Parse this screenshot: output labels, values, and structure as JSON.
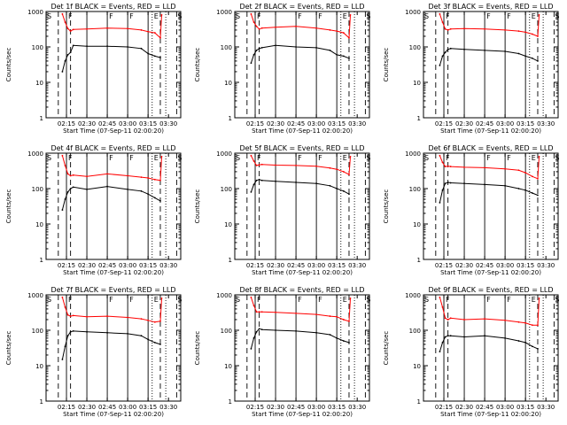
{
  "figure": {
    "xlabel": "Start Time (07-Sep-11 02:00:20)",
    "ylabel": "Counts/sec"
  },
  "colors": {
    "events": "#000000",
    "lld": "#ff0000",
    "axes": "#000000"
  },
  "chart_data": [
    {
      "type": "line",
      "title": "Det 1f BLACK = Events, RED = LLD",
      "y_scale": "log",
      "ylim": [
        1,
        1000
      ],
      "yticks": [
        "1",
        "10",
        "100",
        "1000"
      ],
      "xticks": [
        "02:15",
        "02:30",
        "02:45",
        "03:00",
        "03:15",
        "03:30"
      ],
      "xlim_minutes": [
        0,
        99
      ],
      "marker_letters": [
        "S",
        "F",
        "F",
        "F",
        "E",
        "S"
      ],
      "solid_markers_minutes": [
        15,
        30,
        45,
        60,
        75
      ],
      "dashed_markers_minutes": [
        9,
        18,
        84,
        96
      ],
      "dotted_markers_minutes": [
        78,
        88
      ],
      "series": [
        {
          "color": "#ff0000",
          "minutes": [
            12,
            14,
            16,
            18,
            20,
            30,
            45,
            60,
            70,
            75,
            80,
            84,
            85
          ],
          "values": [
            850,
            500,
            330,
            280,
            310,
            320,
            340,
            330,
            300,
            270,
            250,
            180,
            800
          ]
        },
        {
          "color": "#000000",
          "minutes": [
            12,
            14,
            16,
            18,
            20,
            30,
            45,
            60,
            70,
            75,
            80,
            84
          ],
          "values": [
            20,
            40,
            60,
            70,
            110,
            105,
            105,
            100,
            90,
            65,
            55,
            50
          ]
        }
      ]
    },
    {
      "type": "line",
      "title": "Det 2f BLACK = Events, RED = LLD",
      "y_scale": "log",
      "ylim": [
        1,
        1000
      ],
      "yticks": [
        "1",
        "10",
        "100",
        "1000"
      ],
      "xticks": [
        "02:15",
        "02:30",
        "02:45",
        "03:00",
        "03:15",
        "03:30"
      ],
      "xlim_minutes": [
        0,
        99
      ],
      "marker_letters": [
        "S",
        "F",
        "F",
        "F",
        "E",
        "S"
      ],
      "solid_markers_minutes": [
        15,
        30,
        45,
        60,
        75
      ],
      "dashed_markers_minutes": [
        9,
        18,
        84,
        96
      ],
      "dotted_markers_minutes": [
        78,
        88
      ],
      "series": [
        {
          "color": "#ff0000",
          "minutes": [
            12,
            14,
            16,
            18,
            20,
            30,
            45,
            60,
            70,
            75,
            80,
            84,
            85
          ],
          "values": [
            850,
            500,
            380,
            320,
            340,
            360,
            380,
            340,
            300,
            280,
            250,
            180,
            800
          ]
        },
        {
          "color": "#000000",
          "minutes": [
            12,
            14,
            16,
            18,
            20,
            30,
            45,
            60,
            70,
            75,
            80,
            84
          ],
          "values": [
            35,
            60,
            80,
            90,
            95,
            110,
            100,
            95,
            80,
            60,
            55,
            48
          ]
        }
      ]
    },
    {
      "type": "line",
      "title": "Det 3f BLACK = Events, RED = LLD",
      "y_scale": "log",
      "ylim": [
        1,
        1000
      ],
      "yticks": [
        "1",
        "10",
        "100",
        "1000"
      ],
      "xticks": [
        "02:15",
        "02:30",
        "02:45",
        "03:00",
        "03:15",
        "03:30"
      ],
      "xlim_minutes": [
        0,
        99
      ],
      "marker_letters": [
        "S",
        "F",
        "F",
        "F",
        "E",
        "S"
      ],
      "solid_markers_minutes": [
        15,
        30,
        45,
        60,
        75
      ],
      "dashed_markers_minutes": [
        9,
        18,
        84,
        96
      ],
      "dotted_markers_minutes": [
        78,
        88
      ],
      "series": [
        {
          "color": "#ff0000",
          "minutes": [
            12,
            14,
            16,
            18,
            20,
            30,
            45,
            60,
            70,
            75,
            80,
            84,
            85
          ],
          "values": [
            850,
            500,
            320,
            300,
            320,
            330,
            320,
            300,
            280,
            260,
            230,
            200,
            800
          ]
        },
        {
          "color": "#000000",
          "minutes": [
            12,
            14,
            16,
            18,
            20,
            30,
            45,
            60,
            70,
            75,
            80,
            84
          ],
          "values": [
            30,
            55,
            70,
            85,
            90,
            85,
            80,
            75,
            65,
            55,
            48,
            40
          ]
        }
      ]
    },
    {
      "type": "line",
      "title": "Det 4f BLACK = Events, RED = LLD",
      "y_scale": "log",
      "ylim": [
        1,
        1000
      ],
      "yticks": [
        "1",
        "10",
        "100",
        "1000"
      ],
      "xticks": [
        "02:15",
        "02:30",
        "02:45",
        "03:00",
        "03:15",
        "03:30"
      ],
      "xlim_minutes": [
        0,
        99
      ],
      "marker_letters": [
        "S",
        "F",
        "F",
        "F",
        "E",
        "S"
      ],
      "solid_markers_minutes": [
        15,
        30,
        45,
        60,
        75
      ],
      "dashed_markers_minutes": [
        9,
        18,
        84,
        96
      ],
      "dotted_markers_minutes": [
        78,
        88
      ],
      "series": [
        {
          "color": "#ff0000",
          "minutes": [
            12,
            14,
            16,
            18,
            20,
            30,
            45,
            60,
            70,
            75,
            80,
            84,
            85
          ],
          "values": [
            850,
            450,
            260,
            230,
            240,
            220,
            260,
            230,
            210,
            200,
            180,
            170,
            800
          ]
        },
        {
          "color": "#000000",
          "minutes": [
            12,
            14,
            16,
            18,
            20,
            30,
            45,
            60,
            70,
            75,
            80,
            84
          ],
          "values": [
            25,
            50,
            80,
            100,
            110,
            95,
            115,
            95,
            85,
            70,
            55,
            45
          ]
        }
      ]
    },
    {
      "type": "line",
      "title": "Det 5f BLACK = Events, RED = LLD",
      "y_scale": "log",
      "ylim": [
        1,
        1000
      ],
      "yticks": [
        "1",
        "10",
        "100",
        "1000"
      ],
      "xticks": [
        "02:15",
        "02:30",
        "02:45",
        "03:00",
        "03:15",
        "03:30"
      ],
      "xlim_minutes": [
        0,
        99
      ],
      "marker_letters": [
        "S",
        "F",
        "F",
        "F",
        "E",
        "S"
      ],
      "solid_markers_minutes": [
        15,
        30,
        45,
        60,
        75
      ],
      "dashed_markers_minutes": [
        9,
        18,
        84,
        96
      ],
      "dotted_markers_minutes": [
        78,
        88
      ],
      "series": [
        {
          "color": "#ff0000",
          "minutes": [
            12,
            14,
            16,
            18,
            20,
            30,
            45,
            60,
            70,
            75,
            80,
            84,
            85
          ],
          "values": [
            850,
            600,
            450,
            470,
            480,
            460,
            450,
            430,
            380,
            350,
            300,
            250,
            800
          ]
        },
        {
          "color": "#000000",
          "minutes": [
            12,
            14,
            16,
            18,
            20,
            30,
            45,
            60,
            70,
            75,
            80,
            84
          ],
          "values": [
            80,
            130,
            170,
            180,
            170,
            160,
            150,
            140,
            120,
            100,
            85,
            70
          ]
        }
      ]
    },
    {
      "type": "line",
      "title": "Det 6f BLACK = Events, RED = LLD",
      "y_scale": "log",
      "ylim": [
        1,
        1000
      ],
      "yticks": [
        "1",
        "10",
        "100",
        "1000"
      ],
      "xticks": [
        "02:15",
        "02:30",
        "02:45",
        "03:00",
        "03:15",
        "03:30"
      ],
      "xlim_minutes": [
        0,
        99
      ],
      "marker_letters": [
        "S",
        "F",
        "F",
        "F",
        "E",
        "S"
      ],
      "solid_markers_minutes": [
        15,
        30,
        45,
        60,
        75
      ],
      "dashed_markers_minutes": [
        9,
        18,
        84,
        96
      ],
      "dotted_markers_minutes": [
        78,
        88
      ],
      "series": [
        {
          "color": "#ff0000",
          "minutes": [
            12,
            14,
            16,
            18,
            20,
            30,
            45,
            60,
            70,
            75,
            80,
            84,
            85
          ],
          "values": [
            850,
            550,
            420,
            430,
            420,
            400,
            390,
            360,
            330,
            280,
            220,
            190,
            800
          ]
        },
        {
          "color": "#000000",
          "minutes": [
            12,
            14,
            16,
            18,
            20,
            30,
            45,
            60,
            70,
            75,
            80,
            84
          ],
          "values": [
            40,
            90,
            140,
            150,
            145,
            140,
            130,
            120,
            100,
            90,
            75,
            65
          ]
        }
      ]
    },
    {
      "type": "line",
      "title": "Det 7f BLACK = Events, RED = LLD",
      "y_scale": "log",
      "ylim": [
        1,
        1000
      ],
      "yticks": [
        "1",
        "10",
        "100",
        "1000"
      ],
      "xticks": [
        "02:15",
        "02:30",
        "02:45",
        "03:00",
        "03:15",
        "03:30"
      ],
      "xlim_minutes": [
        0,
        99
      ],
      "marker_letters": [
        "S",
        "F",
        "F",
        "F",
        "E",
        "S"
      ],
      "solid_markers_minutes": [
        15,
        30,
        45,
        60,
        75
      ],
      "dashed_markers_minutes": [
        9,
        18,
        84,
        96
      ],
      "dotted_markers_minutes": [
        78,
        88
      ],
      "series": [
        {
          "color": "#ff0000",
          "minutes": [
            12,
            14,
            16,
            18,
            20,
            30,
            45,
            60,
            70,
            75,
            80,
            84,
            85
          ],
          "values": [
            850,
            450,
            270,
            250,
            260,
            240,
            250,
            230,
            210,
            190,
            170,
            180,
            800
          ]
        },
        {
          "color": "#000000",
          "minutes": [
            12,
            14,
            16,
            18,
            20,
            30,
            45,
            60,
            70,
            75,
            80,
            84
          ],
          "values": [
            15,
            35,
            70,
            90,
            95,
            90,
            85,
            80,
            70,
            55,
            45,
            40
          ]
        }
      ]
    },
    {
      "type": "line",
      "title": "Det 8f BLACK = Events, RED = LLD",
      "y_scale": "log",
      "ylim": [
        1,
        1000
      ],
      "yticks": [
        "1",
        "10",
        "100",
        "1000"
      ],
      "xticks": [
        "02:15",
        "02:30",
        "02:45",
        "03:00",
        "03:15",
        "03:30"
      ],
      "xlim_minutes": [
        0,
        99
      ],
      "marker_letters": [
        "S",
        "F",
        "F",
        "F",
        "E",
        "S"
      ],
      "solid_markers_minutes": [
        15,
        30,
        45,
        60,
        75
      ],
      "dashed_markers_minutes": [
        9,
        18,
        84,
        96
      ],
      "dotted_markers_minutes": [
        78,
        88
      ],
      "series": [
        {
          "color": "#ff0000",
          "minutes": [
            12,
            14,
            16,
            18,
            20,
            30,
            45,
            60,
            70,
            75,
            80,
            84,
            85
          ],
          "values": [
            850,
            500,
            330,
            330,
            330,
            320,
            300,
            280,
            250,
            240,
            200,
            180,
            800
          ]
        },
        {
          "color": "#000000",
          "minutes": [
            12,
            14,
            16,
            18,
            20,
            30,
            45,
            60,
            70,
            75,
            80,
            84
          ],
          "values": [
            30,
            60,
            90,
            110,
            105,
            100,
            95,
            85,
            75,
            60,
            50,
            45
          ]
        }
      ]
    },
    {
      "type": "line",
      "title": "Det 9f BLACK = Events, RED = LLD",
      "y_scale": "log",
      "ylim": [
        1,
        1000
      ],
      "yticks": [
        "1",
        "10",
        "100",
        "1000"
      ],
      "xticks": [
        "02:15",
        "02:30",
        "02:45",
        "03:00",
        "03:15",
        "03:30"
      ],
      "xlim_minutes": [
        0,
        99
      ],
      "marker_letters": [
        "S",
        "F",
        "F",
        "F",
        "E",
        "S"
      ],
      "solid_markers_minutes": [
        15,
        30,
        45,
        60,
        75
      ],
      "dashed_markers_minutes": [
        9,
        18,
        84,
        96
      ],
      "dotted_markers_minutes": [
        78,
        88
      ],
      "series": [
        {
          "color": "#ff0000",
          "minutes": [
            12,
            14,
            16,
            18,
            20,
            30,
            45,
            60,
            70,
            75,
            80,
            84,
            85
          ],
          "values": [
            850,
            450,
            220,
            200,
            220,
            200,
            210,
            190,
            170,
            160,
            140,
            140,
            800
          ]
        },
        {
          "color": "#000000",
          "minutes": [
            12,
            14,
            16,
            18,
            20,
            30,
            45,
            60,
            70,
            75,
            80,
            84
          ],
          "values": [
            25,
            45,
            65,
            70,
            70,
            65,
            70,
            60,
            50,
            45,
            35,
            30
          ]
        }
      ]
    }
  ]
}
